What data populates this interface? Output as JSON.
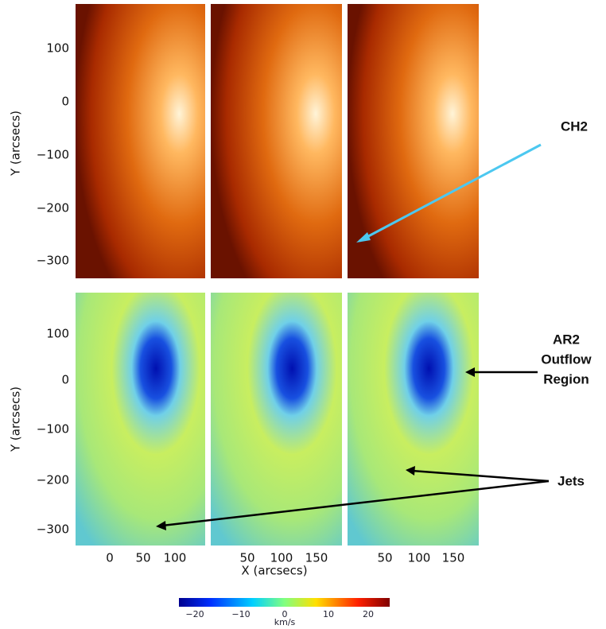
{
  "y_axis": {
    "label": "Y (arcsecs)",
    "ticks": [
      "100",
      "0",
      "-100",
      "-200",
      "-300"
    ]
  },
  "x_axis": {
    "label": "X (arcsecs)",
    "panels": [
      [
        "0",
        "50",
        "100"
      ],
      [
        "50",
        "100",
        "150"
      ],
      [
        "50",
        "100",
        "150"
      ]
    ]
  },
  "colorbar": {
    "label": "km/s",
    "ticks": [
      "-20",
      "-10",
      "0",
      "10",
      "20"
    ]
  },
  "annotations": {
    "ch2": "CH2",
    "outflow": [
      "AR2",
      "Outflow",
      "Region"
    ],
    "jets": "Jets"
  }
}
